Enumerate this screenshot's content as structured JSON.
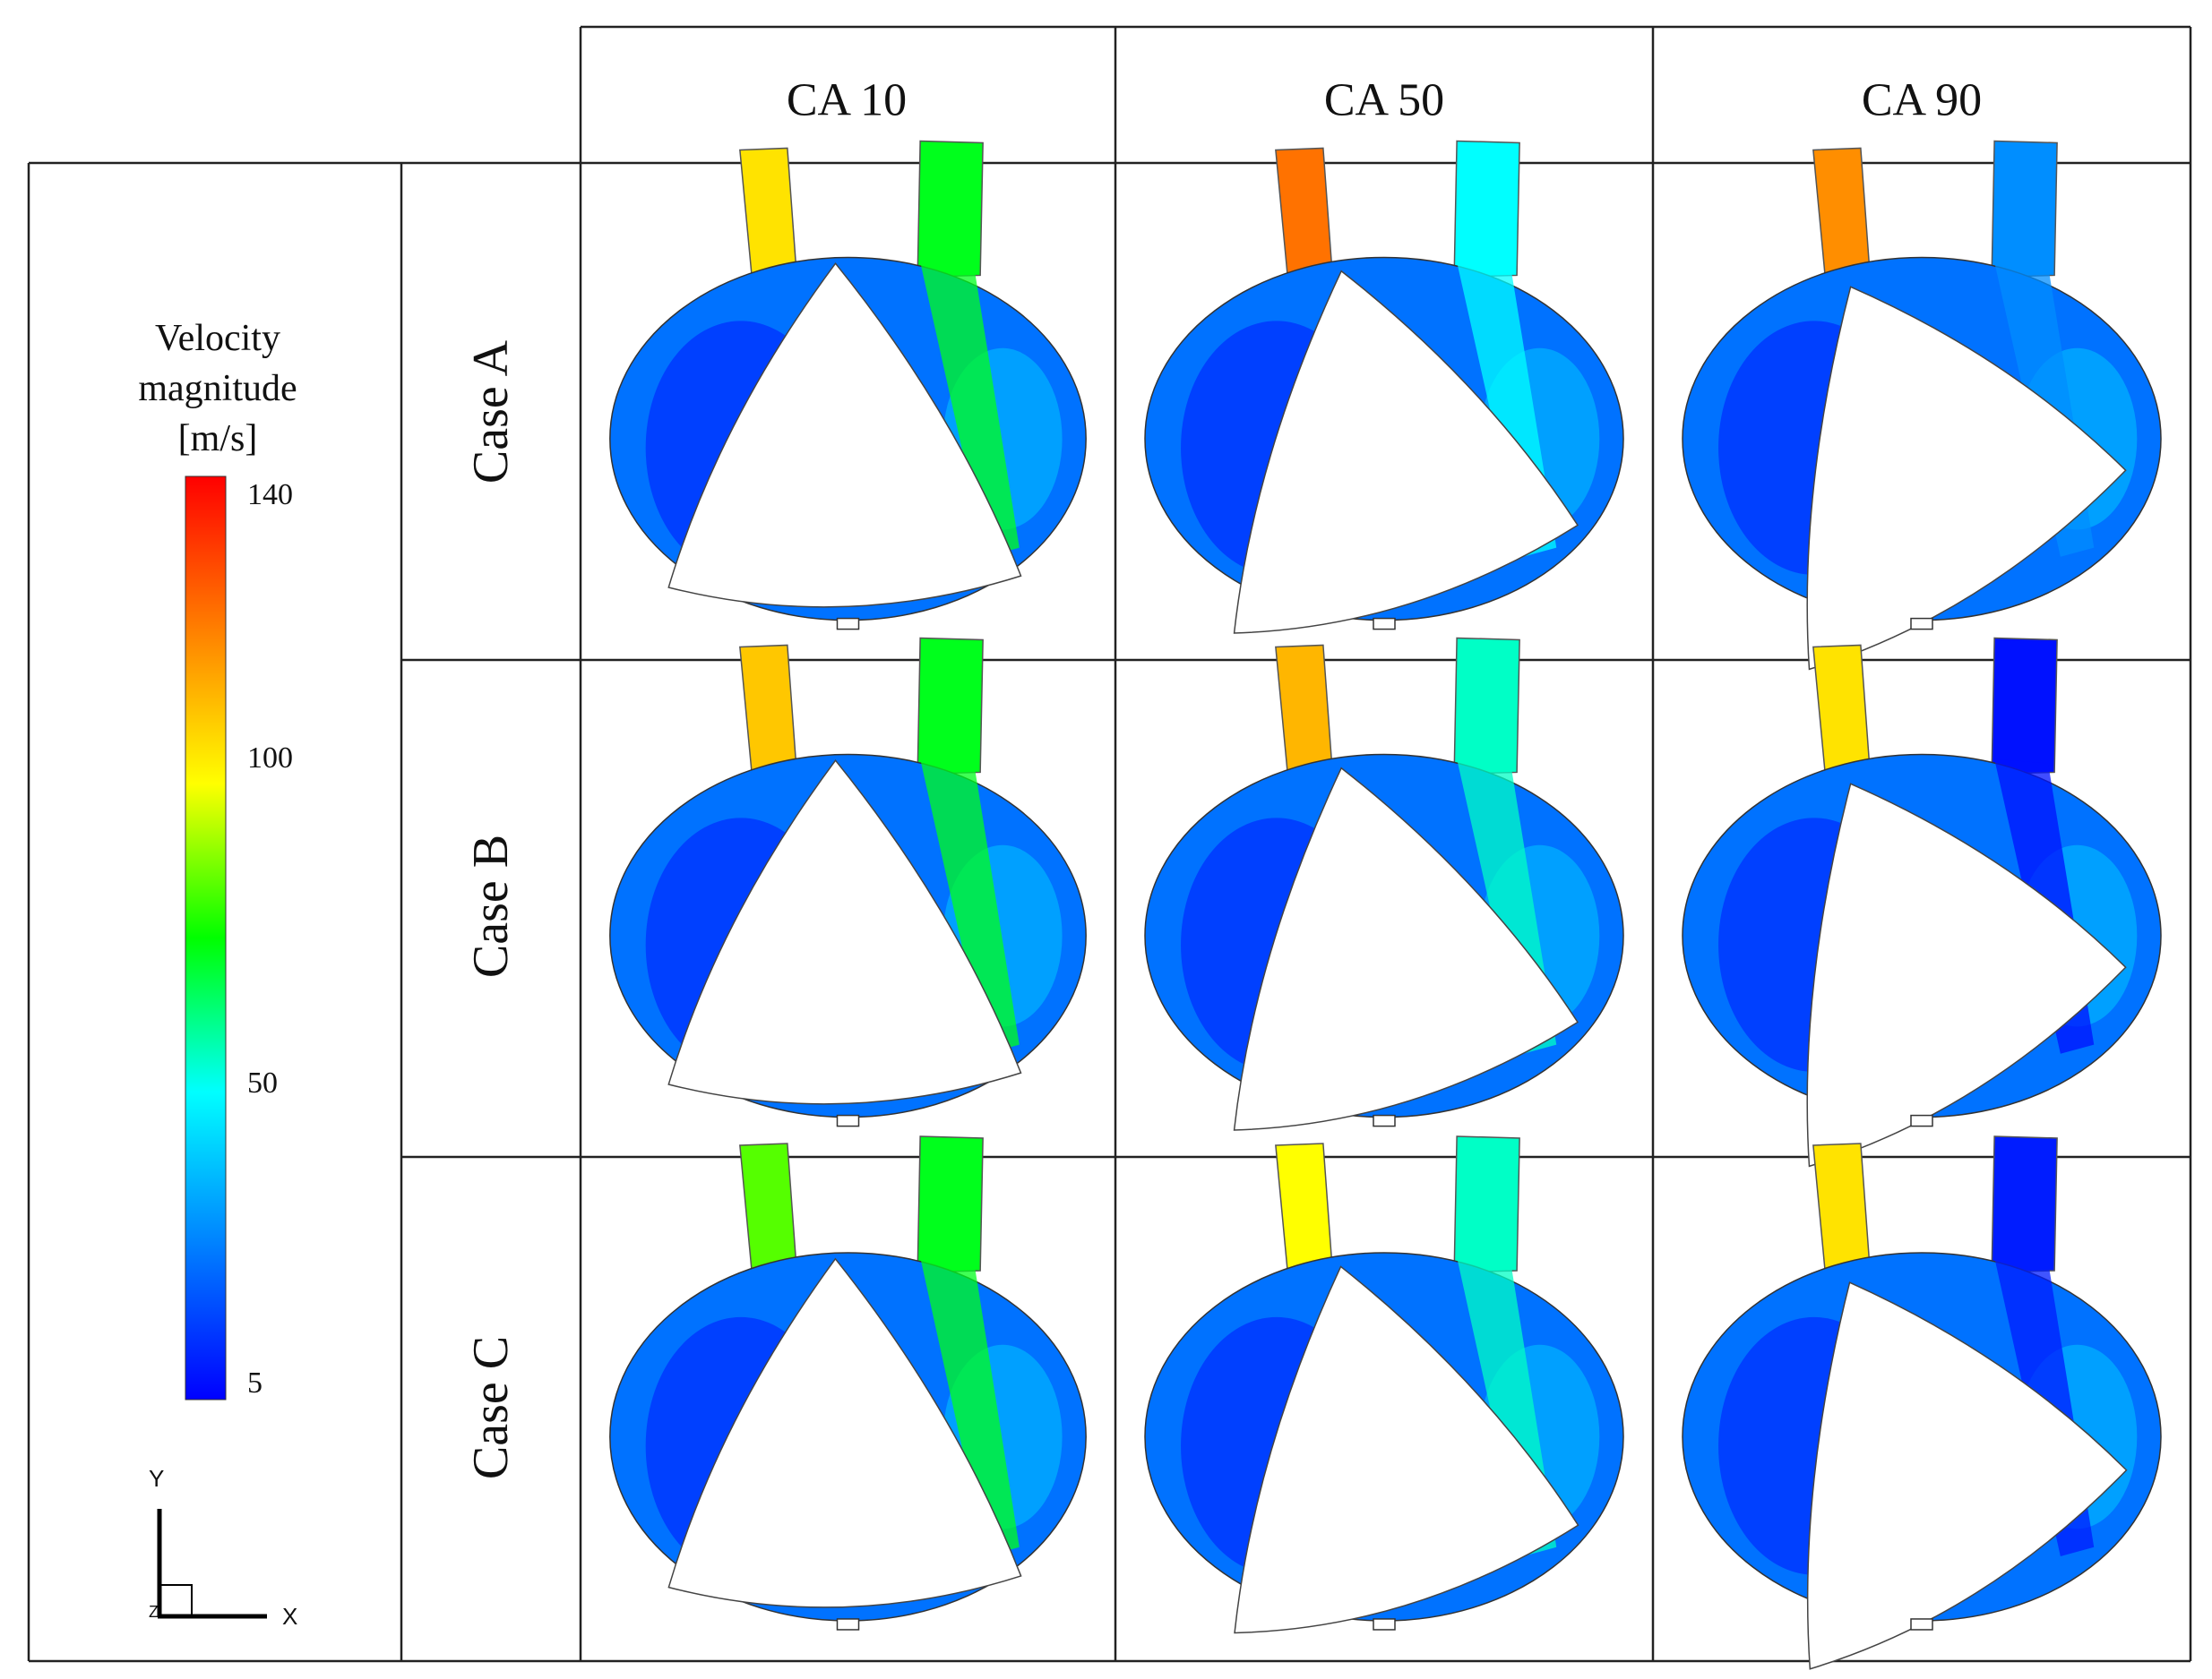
{
  "table": {
    "columns": [
      "CA 10",
      "CA 50",
      "CA 90"
    ],
    "rows": [
      "Case A",
      "Case B",
      "Case C"
    ]
  },
  "legend": {
    "title_lines": [
      "Velocity",
      "magnitude",
      "[m/s]"
    ],
    "ticks": [
      "140",
      "100",
      "50",
      "5"
    ],
    "tick_values": [
      140,
      100,
      50,
      5
    ],
    "range": [
      5,
      140
    ],
    "colormap": [
      "#0000ff",
      "#0080ff",
      "#00ffff",
      "#00ff00",
      "#ffff00",
      "#ff8000",
      "#ff0000"
    ]
  },
  "axes_triad": {
    "y": "Y",
    "x": "X",
    "z": "Z"
  },
  "panels": [
    {
      "row": "Case A",
      "col": "CA 10",
      "phase": 0.1,
      "inlet_jet": 100,
      "outlet_jet": 70
    },
    {
      "row": "Case A",
      "col": "CA 50",
      "phase": 0.5,
      "inlet_jet": 120,
      "outlet_jet": 50
    },
    {
      "row": "Case A",
      "col": "CA 90",
      "phase": 0.9,
      "inlet_jet": 115,
      "outlet_jet": 30
    },
    {
      "row": "Case B",
      "col": "CA 10",
      "phase": 0.1,
      "inlet_jet": 105,
      "outlet_jet": 70
    },
    {
      "row": "Case B",
      "col": "CA 50",
      "phase": 0.5,
      "inlet_jet": 108,
      "outlet_jet": 55
    },
    {
      "row": "Case B",
      "col": "CA 90",
      "phase": 0.9,
      "inlet_jet": 100,
      "outlet_jet": 8
    },
    {
      "row": "Case C",
      "col": "CA 10",
      "phase": 0.1,
      "inlet_jet": 80,
      "outlet_jet": 70
    },
    {
      "row": "Case C",
      "col": "CA 50",
      "phase": 0.5,
      "inlet_jet": 95,
      "outlet_jet": 55
    },
    {
      "row": "Case C",
      "col": "CA 90",
      "phase": 0.9,
      "inlet_jet": 100,
      "outlet_jet": 10
    }
  ]
}
